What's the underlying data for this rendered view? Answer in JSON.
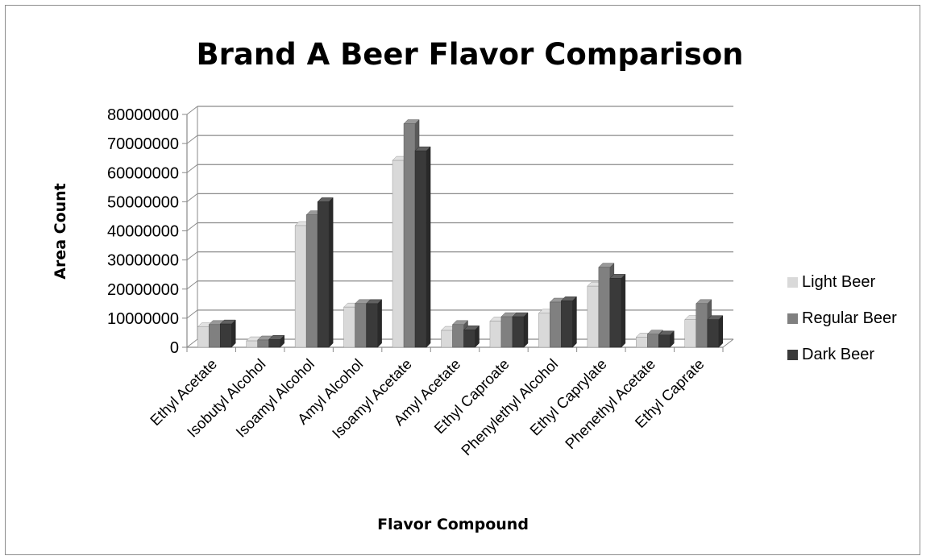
{
  "chart_data": {
    "type": "bar",
    "title": "Brand A Beer Flavor Comparison",
    "xlabel": "Flavor Compound",
    "ylabel": "Area Count",
    "ylim": [
      0,
      80000000
    ],
    "yticks": [
      "0",
      "10000000",
      "20000000",
      "30000000",
      "40000000",
      "50000000",
      "60000000",
      "70000000",
      "80000000"
    ],
    "grid": true,
    "legend_position": "right",
    "categories": [
      "Ethyl Acetate",
      "Isobutyl Alcohol",
      "Isoamyl Alcohol",
      "Amyl Alcohol",
      "Isoamyl Acetate",
      "Amyl Acetate",
      "Ethyl Caproate",
      "Phenylethyl Alcohol",
      "Ethyl Caprylate",
      "Phenethyl Acetate",
      "Ethyl Caprate"
    ],
    "series": [
      {
        "name": "Light Beer",
        "color": "#d9d9d9",
        "values": [
          7000000,
          2200000,
          41800000,
          13800000,
          64200000,
          5800000,
          9000000,
          11700000,
          21000000,
          3500000,
          9500000
        ]
      },
      {
        "name": "Regular Beer",
        "color": "#808080",
        "values": [
          7800000,
          2500000,
          45500000,
          15000000,
          76800000,
          7800000,
          10500000,
          15500000,
          27500000,
          4500000,
          15000000
        ]
      },
      {
        "name": "Dark Beer",
        "color": "#3a3a3a",
        "values": [
          8000000,
          2700000,
          50000000,
          15000000,
          67500000,
          6000000,
          10500000,
          16000000,
          23700000,
          4200000,
          9500000
        ]
      }
    ]
  }
}
